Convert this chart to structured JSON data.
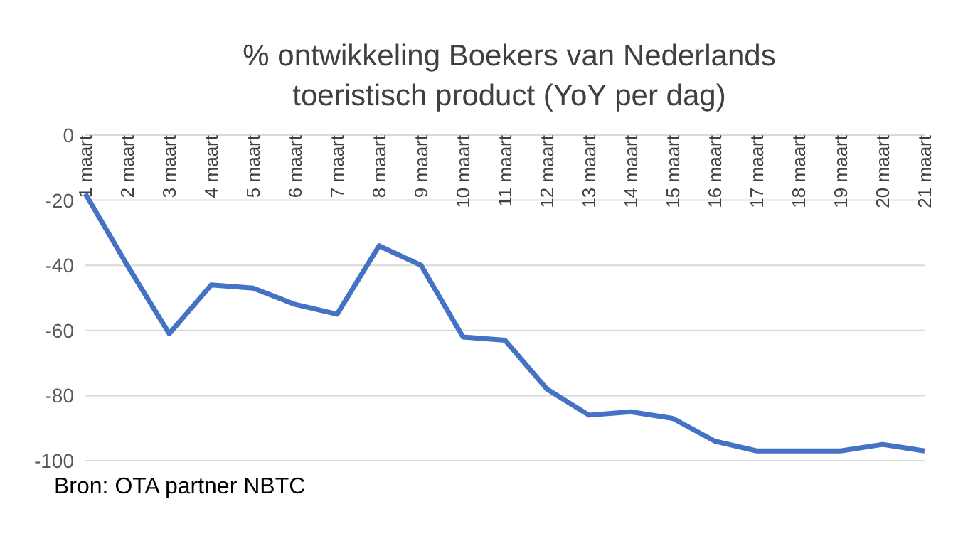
{
  "chart_data": {
    "type": "line",
    "title": "% ontwikkeling Boekers van Nederlands toeristisch product (YoY per dag)",
    "categories": [
      "1 maart",
      "2 maart",
      "3 maart",
      "4 maart",
      "5 maart",
      "6 maart",
      "7 maart",
      "8 maart",
      "9 maart",
      "10 maart",
      "11 maart",
      "12 maart",
      "13 maart",
      "14 maart",
      "15 maart",
      "16 maart",
      "17 maart",
      "18 maart",
      "19 maart",
      "20 maart",
      "21 maart"
    ],
    "series": [
      {
        "color": "#4472c4",
        "values": [
          -18,
          -40,
          -61,
          -46,
          -47,
          -52,
          -55,
          -34,
          -40,
          -62,
          -63,
          -78,
          -86,
          -85,
          -87,
          -94,
          -97,
          -97,
          -97,
          -95,
          -97
        ]
      }
    ],
    "ylim": [
      -100,
      0
    ],
    "yticks": [
      -100,
      -80,
      -60,
      -40,
      -20,
      0
    ],
    "grid": "y",
    "marker": "none",
    "line_style": "solid",
    "annotations": [
      "Bron: OTA partner NBTC"
    ]
  }
}
